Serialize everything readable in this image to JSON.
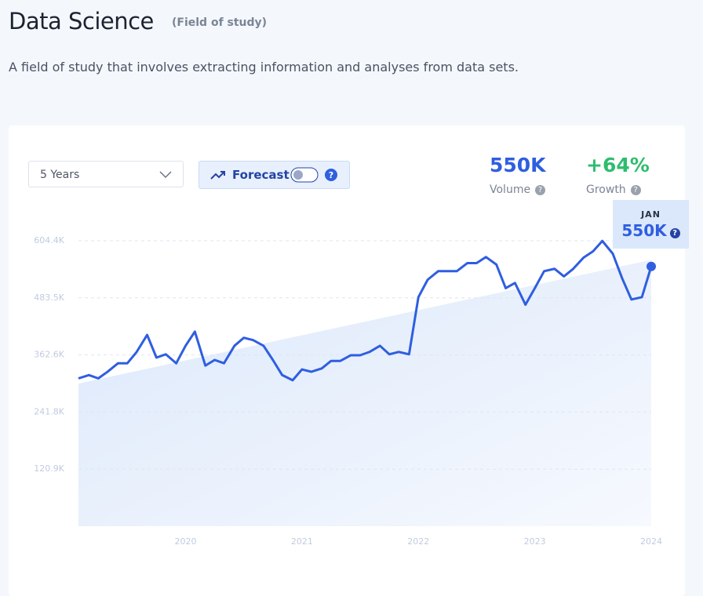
{
  "header": {
    "title": "Data Science",
    "tag": "(Field of study)",
    "description": "A field of study that involves extracting information and analyses from data sets."
  },
  "controls": {
    "range": "5 Years",
    "forecast": "Forecast"
  },
  "stats": {
    "volume": "550K",
    "volume_label": "Volume",
    "growth": "+64%",
    "growth_label": "Growth"
  },
  "tooltip": {
    "month": "JAN",
    "value": "550K"
  },
  "chart_data": {
    "type": "line",
    "color": "#2f5ee0",
    "grid": true,
    "x": [
      2019.08,
      2019.17,
      2019.25,
      2019.33,
      2019.42,
      2019.5,
      2019.58,
      2019.67,
      2019.75,
      2019.83,
      2019.92,
      2020,
      2020.08,
      2020.17,
      2020.25,
      2020.33,
      2020.42,
      2020.5,
      2020.58,
      2020.67,
      2020.75,
      2020.83,
      2020.92,
      2021,
      2021.08,
      2021.17,
      2021.25,
      2021.33,
      2021.42,
      2021.5,
      2021.58,
      2021.67,
      2021.75,
      2021.83,
      2021.92,
      2022,
      2022.08,
      2022.17,
      2022.25,
      2022.33,
      2022.42,
      2022.5,
      2022.58,
      2022.67,
      2022.75,
      2022.83,
      2022.92,
      2023,
      2023.08,
      2023.17,
      2023.25,
      2023.33,
      2023.42,
      2023.5,
      2023.58,
      2023.67,
      2023.75,
      2023.83,
      2023.92,
      2024
    ],
    "values": [
      313000,
      320000,
      313000,
      327000,
      345000,
      345000,
      369000,
      405000,
      357000,
      364000,
      345000,
      382000,
      412000,
      340000,
      352000,
      345000,
      382000,
      399000,
      394000,
      382000,
      352000,
      320000,
      309000,
      332000,
      327000,
      334000,
      350000,
      350000,
      362000,
      362000,
      369000,
      382000,
      364000,
      369000,
      364000,
      485000,
      522000,
      540000,
      540000,
      540000,
      557000,
      557000,
      570000,
      554000,
      504000,
      515000,
      469000,
      504000,
      540000,
      545000,
      529000,
      545000,
      569000,
      582000,
      604000,
      577000,
      525000,
      480000,
      485000,
      550000
    ],
    "trend": {
      "start": 302000,
      "end": 564000
    },
    "xlim": [
      2019.08,
      2024
    ],
    "xticks": [
      2020,
      2021,
      2022,
      2023,
      2024
    ],
    "ylim": [
      0,
      604400
    ],
    "yticks": [
      {
        "value": 120900,
        "label": "120.9K"
      },
      {
        "value": 241800,
        "label": "241.8K"
      },
      {
        "value": 362600,
        "label": "362.6K"
      },
      {
        "value": 483500,
        "label": "483.5K"
      },
      {
        "value": 604400,
        "label": "604.4K"
      }
    ]
  }
}
